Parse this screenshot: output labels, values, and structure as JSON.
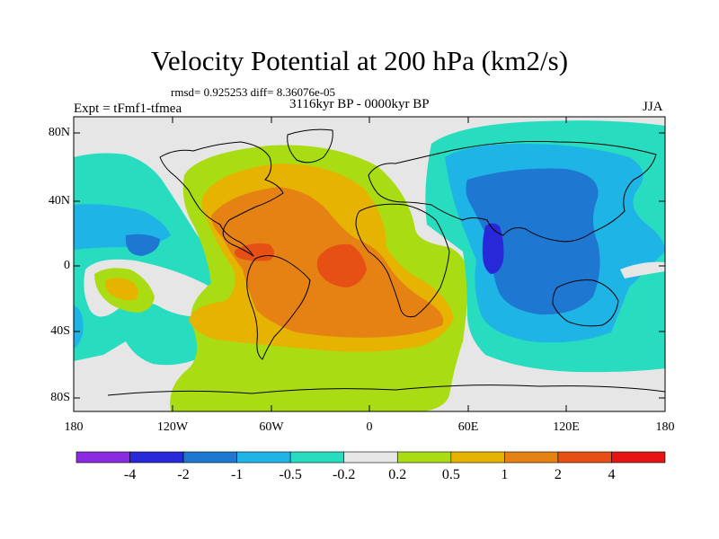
{
  "title": "Velocity Potential at 200 hPa (km2/s)",
  "stats_line": "rmsd= 0.925253 diff= 8.36076e-05",
  "period": "3116kyr BP - 0000kyr BP",
  "experiment": "Expt = tFmf1-tfmea",
  "season": "JJA",
  "lat_labels": [
    "80N",
    "40N",
    "0",
    "40S",
    "80S"
  ],
  "lon_labels": [
    "180",
    "120W",
    "60W",
    "0",
    "60E",
    "120E",
    "180"
  ],
  "colorbar": {
    "colors": [
      "#8a2be2",
      "#2828d8",
      "#1e78d2",
      "#1eb4e6",
      "#28dcc0",
      "#e6e6e6",
      "#aadc14",
      "#e6b400",
      "#e68214",
      "#e65014",
      "#e61414"
    ],
    "labels": [
      "-4",
      "-2",
      "-1",
      "-0.5",
      "-0.2",
      "0.2",
      "0.5",
      "1",
      "2",
      "4"
    ]
  },
  "field_colors": {
    "neutral": "#e6e6e6",
    "cyan": "#28dcc0",
    "lightblue": "#1eb4e6",
    "blue": "#1e78d2",
    "darkblue": "#2828d8",
    "yellowgreen": "#aadc14",
    "gold": "#e6b400",
    "orange": "#e68214",
    "redorange": "#e65014"
  }
}
